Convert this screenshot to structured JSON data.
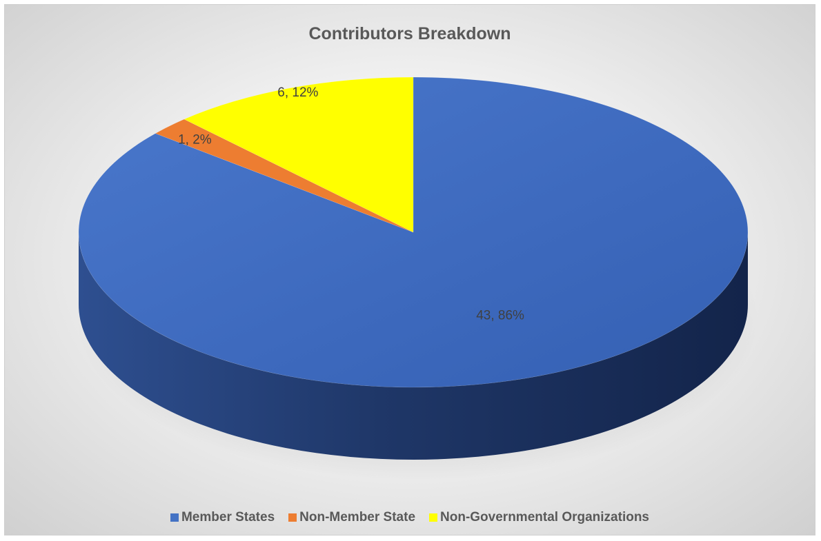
{
  "chart_data": {
    "type": "pie",
    "title": "Contributors Breakdown",
    "labels": [
      "Member States",
      "Non-Member State",
      "Non-Governmental Organizations"
    ],
    "values": [
      43,
      1,
      6
    ],
    "percentages": [
      86,
      2,
      12
    ],
    "data_labels": [
      "43, 86%",
      "1, 2%",
      "6, 12%"
    ],
    "colors": [
      "#4472C4",
      "#ED7D31",
      "#FFFF00"
    ],
    "style": "3d",
    "legend_position": "bottom"
  }
}
